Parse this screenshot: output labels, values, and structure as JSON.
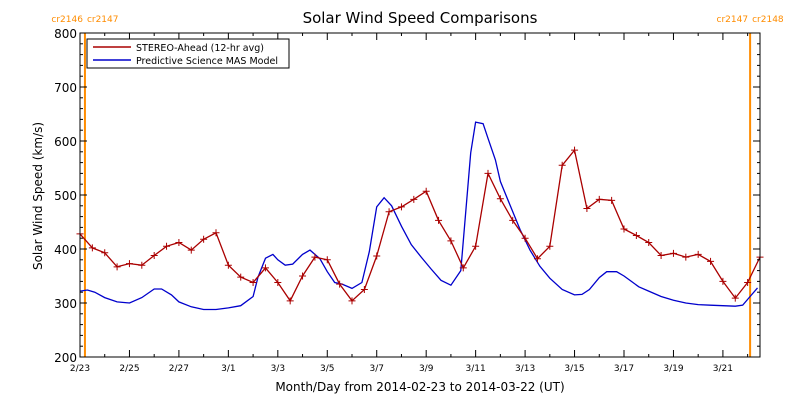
{
  "chart_data": {
    "type": "line",
    "title": "Solar Wind Speed Comparisons",
    "xlabel": "Month/Day from 2014-02-23 to 2014-03-22 (UT)",
    "ylabel": "Solar Wind Speed (km/s)",
    "x_unit": "day of period (0 = 2/23 00:00 UT)",
    "xlim": [
      0,
      27.5
    ],
    "ylim": [
      200,
      800
    ],
    "y_ticks": [
      200,
      300,
      400,
      500,
      600,
      700,
      800
    ],
    "x_ticks": [
      {
        "x": 0,
        "label": "2/23"
      },
      {
        "x": 2,
        "label": "2/25"
      },
      {
        "x": 4,
        "label": "2/27"
      },
      {
        "x": 6,
        "label": "3/1"
      },
      {
        "x": 8,
        "label": "3/3"
      },
      {
        "x": 10,
        "label": "3/5"
      },
      {
        "x": 12,
        "label": "3/7"
      },
      {
        "x": 14,
        "label": "3/9"
      },
      {
        "x": 16,
        "label": "3/11"
      },
      {
        "x": 18,
        "label": "3/13"
      },
      {
        "x": 20,
        "label": "3/15"
      },
      {
        "x": 22,
        "label": "3/17"
      },
      {
        "x": 24,
        "label": "3/19"
      },
      {
        "x": 26,
        "label": "3/21"
      }
    ],
    "carrington_markers": [
      {
        "x": 0.2,
        "left_label": "cr2146",
        "right_label": "cr2147"
      },
      {
        "x": 27.1,
        "left_label": "cr2147",
        "right_label": "cr2148"
      }
    ],
    "marker_color": "#ff8c00",
    "legend_position": "top-left",
    "grid": false,
    "series": [
      {
        "name": "STEREO-Ahead (12-hr avg)",
        "color": "#aa0000",
        "marker": "plus",
        "x": [
          0.0,
          0.5,
          1.0,
          1.5,
          2.0,
          2.5,
          3.0,
          3.5,
          4.0,
          4.5,
          5.0,
          5.5,
          6.0,
          6.5,
          7.0,
          7.5,
          8.0,
          8.5,
          9.0,
          9.5,
          10.0,
          10.5,
          11.0,
          11.5,
          12.0,
          12.5,
          13.0,
          13.5,
          14.0,
          14.5,
          15.0,
          15.5,
          16.0,
          16.5,
          17.0,
          17.5,
          18.0,
          18.5,
          19.0,
          19.5,
          20.0,
          20.5,
          21.0,
          21.5,
          22.0,
          22.5,
          23.0,
          23.5,
          24.0,
          24.5,
          25.0,
          25.5,
          26.0,
          26.5,
          27.0,
          27.5
        ],
        "y": [
          428,
          402,
          393,
          367,
          373,
          370,
          388,
          405,
          412,
          398,
          418,
          430,
          370,
          348,
          338,
          365,
          338,
          304,
          350,
          385,
          380,
          335,
          304,
          325,
          387,
          469,
          478,
          492,
          507,
          453,
          415,
          365,
          405,
          540,
          493,
          453,
          420,
          382,
          405,
          555,
          583,
          475,
          492,
          490,
          437,
          425,
          412,
          388,
          392,
          385,
          390,
          377,
          340,
          309,
          338,
          385
        ]
      },
      {
        "name": "Predictive Science MAS Model",
        "color": "#0000cc",
        "marker": "none",
        "x": [
          0.0,
          0.3,
          0.6,
          1.0,
          1.5,
          2.0,
          2.5,
          3.0,
          3.3,
          3.7,
          4.0,
          4.5,
          5.0,
          5.5,
          6.0,
          6.5,
          7.0,
          7.2,
          7.5,
          7.8,
          8.0,
          8.3,
          8.6,
          9.0,
          9.3,
          9.7,
          10.0,
          10.3,
          10.6,
          11.0,
          11.4,
          11.7,
          12.0,
          12.3,
          12.6,
          13.0,
          13.4,
          13.8,
          14.2,
          14.6,
          15.0,
          15.4,
          15.8,
          16.0,
          16.3,
          16.5,
          16.8,
          17.0,
          17.4,
          17.8,
          18.2,
          18.6,
          19.0,
          19.5,
          20.0,
          20.3,
          20.6,
          21.0,
          21.3,
          21.7,
          22.0,
          22.3,
          22.6,
          23.0,
          23.5,
          24.0,
          24.5,
          25.0,
          25.5,
          26.0,
          26.5,
          26.8,
          27.1,
          27.4
        ],
        "y": [
          322,
          324,
          320,
          310,
          302,
          300,
          310,
          326,
          326,
          315,
          302,
          293,
          288,
          288,
          291,
          295,
          312,
          348,
          383,
          390,
          380,
          370,
          372,
          390,
          398,
          382,
          358,
          338,
          335,
          327,
          338,
          395,
          478,
          495,
          480,
          442,
          408,
          385,
          363,
          342,
          333,
          360,
          578,
          635,
          632,
          605,
          565,
          525,
          480,
          436,
          398,
          368,
          346,
          325,
          315,
          316,
          325,
          347,
          358,
          358,
          350,
          340,
          330,
          322,
          312,
          305,
          300,
          297,
          296,
          295,
          294,
          296,
          312,
          328
        ]
      }
    ]
  }
}
